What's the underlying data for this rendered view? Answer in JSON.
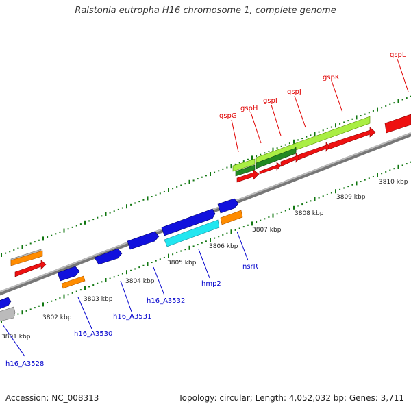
{
  "title": "Ralstonia eutropha H16 chromosome 1, complete genome",
  "accession": "Accession: NC_008313",
  "topology": "Topology: circular; Length: 4,052,032 bp; Genes: 3,711",
  "kbp_labels": [
    "3801 kbp",
    "3802 kbp",
    "3803 kbp",
    "3804 kbp",
    "3805 kbp",
    "3806 kbp",
    "3807 kbp",
    "3808 kbp",
    "3809 kbp",
    "3810 kbp"
  ],
  "gene_labels_upper": [
    "gspG",
    "gspH",
    "gspI",
    "gspJ",
    "gspK",
    "gspL"
  ],
  "gene_labels_lower": [
    "h16_A3528",
    "h16_A3530",
    "h16_A3531",
    "h16_A3532",
    "hmp2",
    "nsrR"
  ],
  "colors": {
    "red": "#ee1111",
    "blue": "#1111dd",
    "orange": "#ff8c00",
    "gray": "#bbbbbb",
    "cyan": "#22e6f0",
    "lime": "#aaee44",
    "darkgreen": "#228822",
    "backbone": "#888888",
    "tick": "#117711"
  }
}
